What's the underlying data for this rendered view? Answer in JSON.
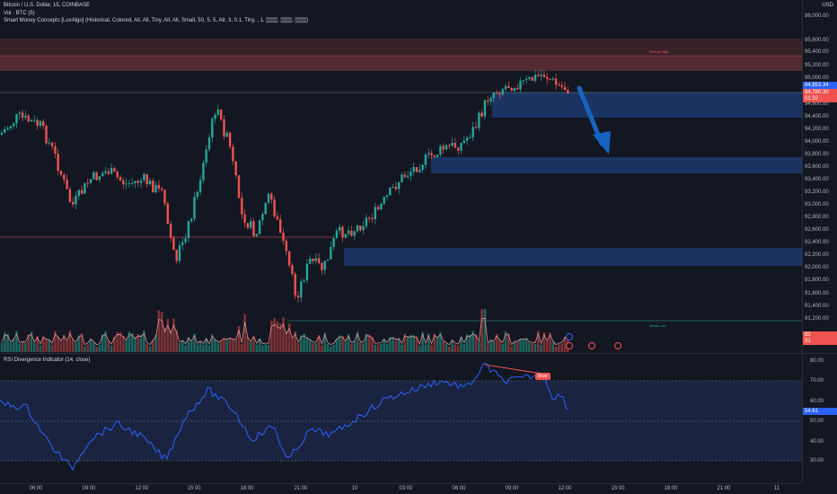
{
  "legend": {
    "symbol_line": "Bitcoin / U.S. Dollar, 15, COINBASE",
    "volume_line": "Vol · BTC (5)",
    "smc_line": "Smart Money Concepts [LuxAlgo] (Historical, Colored, All, All, Tiny, All, All, Small, 50, 5, 5, Atr, 3, 0.1, Tiny, , 1, ▒▒▒, ▒▒▒, ▒▒▒)"
  },
  "price_axis": {
    "currency": "USD",
    "ticks": [
      "96,000.00",
      "95,600.00",
      "95,400.00",
      "95,200.00",
      "95,000.00",
      "94,600.00",
      "94,400.00",
      "94,200.00",
      "94,000.00",
      "93,800.00",
      "93,600.00",
      "93,400.00",
      "93,200.00",
      "93,000.00",
      "92,800.00",
      "92,600.00",
      "92,400.00",
      "92,200.00",
      "92,000.00",
      "91,800.00",
      "91,600.00",
      "91,400.00",
      "91,200.00",
      "90,800.00"
    ],
    "current_price": "94,853.34",
    "price_tag_2": "94,780.30",
    "countdown": "01:32",
    "vol_tag_1": "82",
    "vol_tag_2": "31"
  },
  "zones": {
    "strong_high_label": "Strong High",
    "weak_low_label": "Weak Low"
  },
  "rsi": {
    "title": "RSI Divergence Indicator (14, close)",
    "ticks": [
      "80.00",
      "70.00",
      "60.00",
      "50.00",
      "40.00",
      "30.00"
    ],
    "value": "54.61",
    "bear_label": "Bear"
  },
  "time_axis": {
    "ticks": [
      "06:00",
      "09:00",
      "12:00",
      "15:00",
      "18:00",
      "21:00",
      "10",
      "03:00",
      "06:00",
      "09:00",
      "12:00",
      "15:00",
      "18:00",
      "21:00",
      "11"
    ]
  },
  "colors": {
    "bull": "#26a69a",
    "bear": "#ef5350",
    "ob_blue": "#1e3a6e",
    "rsi_line": "#2962ff",
    "arrow": "#1565c0"
  },
  "icons": {
    "arrow": "down-arrow-icon",
    "buttons": [
      "plus-icon",
      "gear-icon",
      "news-icon"
    ]
  }
}
